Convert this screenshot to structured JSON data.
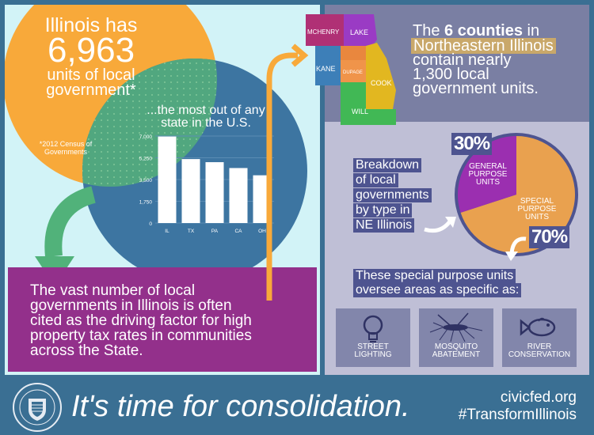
{
  "headline": {
    "line1": "Illinois has",
    "number": "6,963",
    "line3": "units of local",
    "line4": "government*",
    "footnote": "*2012 Census of Governments"
  },
  "circle_text": {
    "line1": "...the most out of any",
    "line2": "state in the U.S."
  },
  "chart_data": {
    "type": "bar",
    "categories": [
      "IL",
      "TX",
      "PA",
      "CA",
      "OH"
    ],
    "values": [
      6963,
      5147,
      4897,
      4425,
      3842
    ],
    "yticks": [
      "7,000",
      "5,250",
      "3,500",
      "1,750",
      "0"
    ],
    "ylim": [
      0,
      7000
    ],
    "title": "",
    "xlabel": "",
    "ylabel": ""
  },
  "counties": {
    "items": [
      "MCHENRY",
      "LAKE",
      "KANE",
      "DUPAGE",
      "COOK",
      "WILL"
    ],
    "text": {
      "pre": "The ",
      "bold": "6 counties",
      "post": " in",
      "highlight": "Northeastern Illinois",
      "rest1": "contain nearly",
      "rest2": "1,300 local",
      "rest3": "government units."
    }
  },
  "breakdown": {
    "lines": [
      "Breakdown",
      "of local",
      "governments",
      "by type in",
      "NE Illinois"
    ],
    "general": {
      "pct": "30%",
      "label1": "GENERAL",
      "label2": "PURPOSE",
      "label3": "UNITS",
      "value": 30
    },
    "special": {
      "pct": "70%",
      "label1": "SPECIAL",
      "label2": "PURPOSE",
      "label3": "UNITS",
      "value": 70
    }
  },
  "special_units": {
    "line1": "These special purpose units",
    "line2": "oversee areas as specific as:",
    "items": [
      {
        "l1": "STREET",
        "l2": "LIGHTING",
        "icon": "lightbulb-icon"
      },
      {
        "l1": "MOSQUITO",
        "l2": "ABATEMENT",
        "icon": "mosquito-icon"
      },
      {
        "l1": "RIVER",
        "l2": "CONSERVATION",
        "icon": "fish-icon"
      }
    ]
  },
  "purple_text": {
    "l1": "The vast number of local",
    "l2": "governments in Illinois is often",
    "l3": "cited as the driving factor for high",
    "l4": "property tax rates in communities",
    "l5": "across the State."
  },
  "footer": {
    "slogan": "It's time for consolidation.",
    "site": "civicfed.org",
    "hashtag": "#TransformIllinois"
  },
  "colors": {
    "orange": "#f8a93a",
    "blue": "#3d75a1",
    "green": "#51b27a",
    "purple": "#93308b",
    "slate": "#7a7fa3",
    "footer": "#3a6f93"
  }
}
